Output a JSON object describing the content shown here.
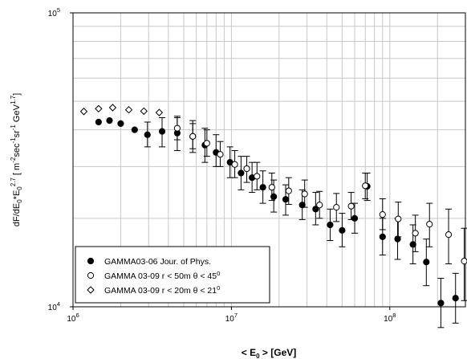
{
  "chart_data": {
    "type": "scatter",
    "x_scale": "log",
    "y_scale": "log",
    "xlim": [
      1000000,
      300000000
    ],
    "ylim": [
      10000,
      100000
    ],
    "grid": true,
    "legend_position": "bottom-left",
    "x_ticks": [
      {
        "value": 1000000,
        "mantissa": "10",
        "exp": "6"
      },
      {
        "value": 10000000,
        "mantissa": "10",
        "exp": "7"
      },
      {
        "value": 100000000,
        "mantissa": "10",
        "exp": "8"
      }
    ],
    "y_ticks": [
      {
        "value": 10000,
        "mantissa": "10",
        "exp": "4"
      },
      {
        "value": 100000,
        "mantissa": "10",
        "exp": "5"
      }
    ],
    "xlabel": {
      "pre": "< E",
      "sub": "0",
      "post": " > [GeV]"
    },
    "ylabel": {
      "p1": "dF/dE",
      "s1": "0",
      "p2": "*E",
      "s2": "0",
      "e2": "2.7",
      "p3": " [ m",
      "e3": "-2",
      "p4": "sec",
      "e4": "-1",
      "p5": "sr",
      "e5": "-1",
      "p6": " GeV",
      "e6": "1.7",
      "p7": "]"
    },
    "series": [
      {
        "name": "GAMMA03-06 Jour. of Phys.",
        "marker": "filled-circle",
        "points": [
          {
            "x": 1450000,
            "y": 42500
          },
          {
            "x": 1700000,
            "y": 43000
          },
          {
            "x": 2000000,
            "y": 42000
          },
          {
            "x": 2450000,
            "y": 40000
          },
          {
            "x": 2950000,
            "y": 38500,
            "lo": 35000,
            "hi": 42500
          },
          {
            "x": 3650000,
            "y": 39500,
            "lo": 35000,
            "hi": 44000
          },
          {
            "x": 4550000,
            "y": 39000,
            "lo": 34000,
            "hi": 44000
          },
          {
            "x": 5700000,
            "y": 38000,
            "lo": 33500,
            "hi": 43000
          },
          {
            "x": 6800000,
            "y": 35500,
            "lo": 31000,
            "hi": 40500
          },
          {
            "x": 8000000,
            "y": 33500,
            "lo": 30000,
            "hi": 38500
          },
          {
            "x": 9800000,
            "y": 31000,
            "lo": 27500,
            "hi": 35000
          },
          {
            "x": 11500000,
            "y": 28500,
            "lo": 25000,
            "hi": 32500
          },
          {
            "x": 13500000,
            "y": 27500,
            "lo": 24500,
            "hi": 31000
          },
          {
            "x": 15800000,
            "y": 25500,
            "lo": 22500,
            "hi": 29000
          },
          {
            "x": 18500000,
            "y": 23700,
            "lo": 21000,
            "hi": 27000
          },
          {
            "x": 22000000,
            "y": 23200,
            "lo": 20500,
            "hi": 26000
          },
          {
            "x": 28000000,
            "y": 22200,
            "lo": 19800,
            "hi": 25000
          },
          {
            "x": 34000000,
            "y": 21500,
            "lo": 19000,
            "hi": 24500
          },
          {
            "x": 42000000,
            "y": 19000,
            "lo": 16800,
            "hi": 21500
          },
          {
            "x": 50000000,
            "y": 18200,
            "lo": 16000,
            "hi": 20800
          },
          {
            "x": 60000000,
            "y": 20000,
            "lo": 17800,
            "hi": 22500
          },
          {
            "x": 72000000,
            "y": 25700,
            "lo": 23000,
            "hi": 28500
          },
          {
            "x": 90000000,
            "y": 17300,
            "lo": 15000,
            "hi": 20000
          },
          {
            "x": 112000000,
            "y": 17000,
            "lo": 14500,
            "hi": 20000
          },
          {
            "x": 140000000,
            "y": 16300,
            "lo": 14000,
            "hi": 19000
          },
          {
            "x": 170000000,
            "y": 14200,
            "lo": 11800,
            "hi": 17000
          },
          {
            "x": 210000000,
            "y": 10300,
            "lo": 8500,
            "hi": 12500
          },
          {
            "x": 260000000,
            "y": 10700,
            "lo": 8800,
            "hi": 13000
          }
        ]
      },
      {
        "name": "GAMMA 03-09 r < 50m θ < 45",
        "name_sup": "0",
        "marker": "open-circle",
        "points": [
          {
            "x": 4550000,
            "y": 40500,
            "lo": 37000,
            "hi": 44500
          },
          {
            "x": 5700000,
            "y": 38000,
            "lo": 34500,
            "hi": 42000
          },
          {
            "x": 7000000,
            "y": 36000,
            "lo": 32500,
            "hi": 40000
          },
          {
            "x": 8500000,
            "y": 33000,
            "lo": 30000,
            "hi": 36500
          },
          {
            "x": 10500000,
            "y": 30500,
            "lo": 27500,
            "hi": 34000
          },
          {
            "x": 12500000,
            "y": 29500,
            "lo": 26500,
            "hi": 32500
          },
          {
            "x": 14500000,
            "y": 27800,
            "lo": 25000,
            "hi": 31000
          },
          {
            "x": 18000000,
            "y": 25500,
            "lo": 23000,
            "hi": 28500
          },
          {
            "x": 23000000,
            "y": 24800,
            "lo": 22300,
            "hi": 27500
          },
          {
            "x": 29000000,
            "y": 24200,
            "lo": 21800,
            "hi": 27000
          },
          {
            "x": 36000000,
            "y": 22200,
            "lo": 20000,
            "hi": 24700
          },
          {
            "x": 46000000,
            "y": 21800,
            "lo": 19500,
            "hi": 24300
          },
          {
            "x": 57000000,
            "y": 22000,
            "lo": 19800,
            "hi": 24500
          },
          {
            "x": 70000000,
            "y": 25800,
            "lo": 23300,
            "hi": 28500
          },
          {
            "x": 90000000,
            "y": 20600,
            "lo": 18300,
            "hi": 23300
          },
          {
            "x": 113000000,
            "y": 19900,
            "lo": 17300,
            "hi": 22700
          },
          {
            "x": 145000000,
            "y": 17800,
            "lo": 15400,
            "hi": 20500
          },
          {
            "x": 178000000,
            "y": 19100,
            "lo": 16000,
            "hi": 22500
          },
          {
            "x": 235000000,
            "y": 17600,
            "lo": 14000,
            "hi": 21500
          },
          {
            "x": 295000000,
            "y": 14300,
            "lo": 10500,
            "hi": 18500
          }
        ]
      },
      {
        "name": "GAMMA 03-09 r < 20m θ < 21",
        "name_sup": "0",
        "marker": "open-diamond",
        "points": [
          {
            "x": 1170000,
            "y": 46200
          },
          {
            "x": 1450000,
            "y": 47200
          },
          {
            "x": 1780000,
            "y": 47600
          },
          {
            "x": 2250000,
            "y": 46800
          },
          {
            "x": 2800000,
            "y": 46300
          },
          {
            "x": 3500000,
            "y": 45800
          }
        ]
      }
    ]
  }
}
